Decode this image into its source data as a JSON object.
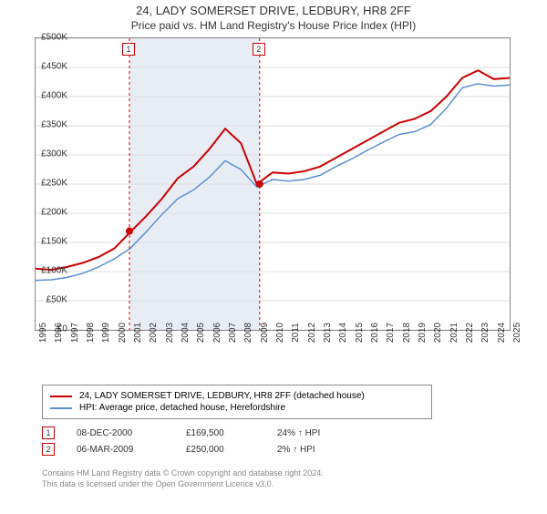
{
  "title": "24, LADY SOMERSET DRIVE, LEDBURY, HR8 2FF",
  "subtitle": "Price paid vs. HM Land Registry's House Price Index (HPI)",
  "chart": {
    "type": "line",
    "background_color": "#ffffff",
    "grid_color": "#dddddd",
    "border_color": "#888888",
    "ylim": [
      0,
      500000
    ],
    "ytick_step": 50000,
    "yticks": [
      "£0",
      "£50K",
      "£100K",
      "£150K",
      "£200K",
      "£250K",
      "£300K",
      "£350K",
      "£400K",
      "£450K",
      "£500K"
    ],
    "xlim": [
      1995,
      2025
    ],
    "xticks": [
      "1995",
      "1996",
      "1997",
      "1998",
      "1999",
      "2000",
      "2001",
      "2002",
      "2003",
      "2004",
      "2005",
      "2006",
      "2007",
      "2008",
      "2009",
      "2010",
      "2011",
      "2012",
      "2013",
      "2014",
      "2015",
      "2016",
      "2017",
      "2018",
      "2019",
      "2020",
      "2021",
      "2022",
      "2023",
      "2024",
      "2025"
    ],
    "label_fontsize": 10,
    "shaded_region": {
      "x_start": 2000.94,
      "x_end": 2009.18,
      "color": "#e8edf5"
    },
    "series": [
      {
        "name": "property",
        "color": "#cc0000",
        "width": 2,
        "points": [
          [
            1995,
            105000
          ],
          [
            1996,
            103000
          ],
          [
            1997,
            108000
          ],
          [
            1998,
            115000
          ],
          [
            1999,
            125000
          ],
          [
            2000,
            140000
          ],
          [
            2001,
            168000
          ],
          [
            2002,
            195000
          ],
          [
            2003,
            225000
          ],
          [
            2004,
            260000
          ],
          [
            2005,
            280000
          ],
          [
            2006,
            310000
          ],
          [
            2007,
            345000
          ],
          [
            2008,
            320000
          ],
          [
            2009,
            250000
          ],
          [
            2010,
            270000
          ],
          [
            2011,
            268000
          ],
          [
            2012,
            272000
          ],
          [
            2013,
            280000
          ],
          [
            2014,
            295000
          ],
          [
            2015,
            310000
          ],
          [
            2016,
            325000
          ],
          [
            2017,
            340000
          ],
          [
            2018,
            355000
          ],
          [
            2019,
            362000
          ],
          [
            2020,
            375000
          ],
          [
            2021,
            400000
          ],
          [
            2022,
            432000
          ],
          [
            2023,
            445000
          ],
          [
            2024,
            430000
          ],
          [
            2025,
            432000
          ]
        ]
      },
      {
        "name": "hpi",
        "color": "#5b8fd6",
        "width": 1.5,
        "points": [
          [
            1995,
            85000
          ],
          [
            1996,
            86000
          ],
          [
            1997,
            90000
          ],
          [
            1998,
            97000
          ],
          [
            1999,
            108000
          ],
          [
            2000,
            122000
          ],
          [
            2001,
            140000
          ],
          [
            2002,
            168000
          ],
          [
            2003,
            198000
          ],
          [
            2004,
            225000
          ],
          [
            2005,
            240000
          ],
          [
            2006,
            262000
          ],
          [
            2007,
            290000
          ],
          [
            2008,
            275000
          ],
          [
            2009,
            245000
          ],
          [
            2010,
            258000
          ],
          [
            2011,
            255000
          ],
          [
            2012,
            258000
          ],
          [
            2013,
            265000
          ],
          [
            2014,
            280000
          ],
          [
            2015,
            293000
          ],
          [
            2016,
            308000
          ],
          [
            2017,
            322000
          ],
          [
            2018,
            335000
          ],
          [
            2019,
            340000
          ],
          [
            2020,
            352000
          ],
          [
            2021,
            380000
          ],
          [
            2022,
            415000
          ],
          [
            2023,
            422000
          ],
          [
            2024,
            418000
          ],
          [
            2025,
            420000
          ]
        ]
      }
    ],
    "markers": [
      {
        "label": "1",
        "x": 2000.94,
        "y": 169500,
        "line_color": "#cc0000",
        "box_border": "#cc0000",
        "box_top": 6
      },
      {
        "label": "2",
        "x": 2009.18,
        "y": 250000,
        "line_color": "#cc0000",
        "box_border": "#cc0000",
        "box_top": 6
      }
    ],
    "marker_dot_color": "#cc0000",
    "marker_dot_radius": 4
  },
  "legend": {
    "items": [
      {
        "color": "#cc0000",
        "label": "24, LADY SOMERSET DRIVE, LEDBURY, HR8 2FF (detached house)"
      },
      {
        "color": "#5b8fd6",
        "label": "HPI: Average price, detached house, Herefordshire"
      }
    ]
  },
  "sales": [
    {
      "n": "1",
      "border": "#cc0000",
      "date": "08-DEC-2000",
      "price": "£169,500",
      "pct": "24% ↑ HPI"
    },
    {
      "n": "2",
      "border": "#cc0000",
      "date": "06-MAR-2009",
      "price": "£250,000",
      "pct": "2% ↑ HPI"
    }
  ],
  "footer": {
    "line1": "Contains HM Land Registry data © Crown copyright and database right 2024.",
    "line2": "This data is licensed under the Open Government Licence v3.0."
  }
}
